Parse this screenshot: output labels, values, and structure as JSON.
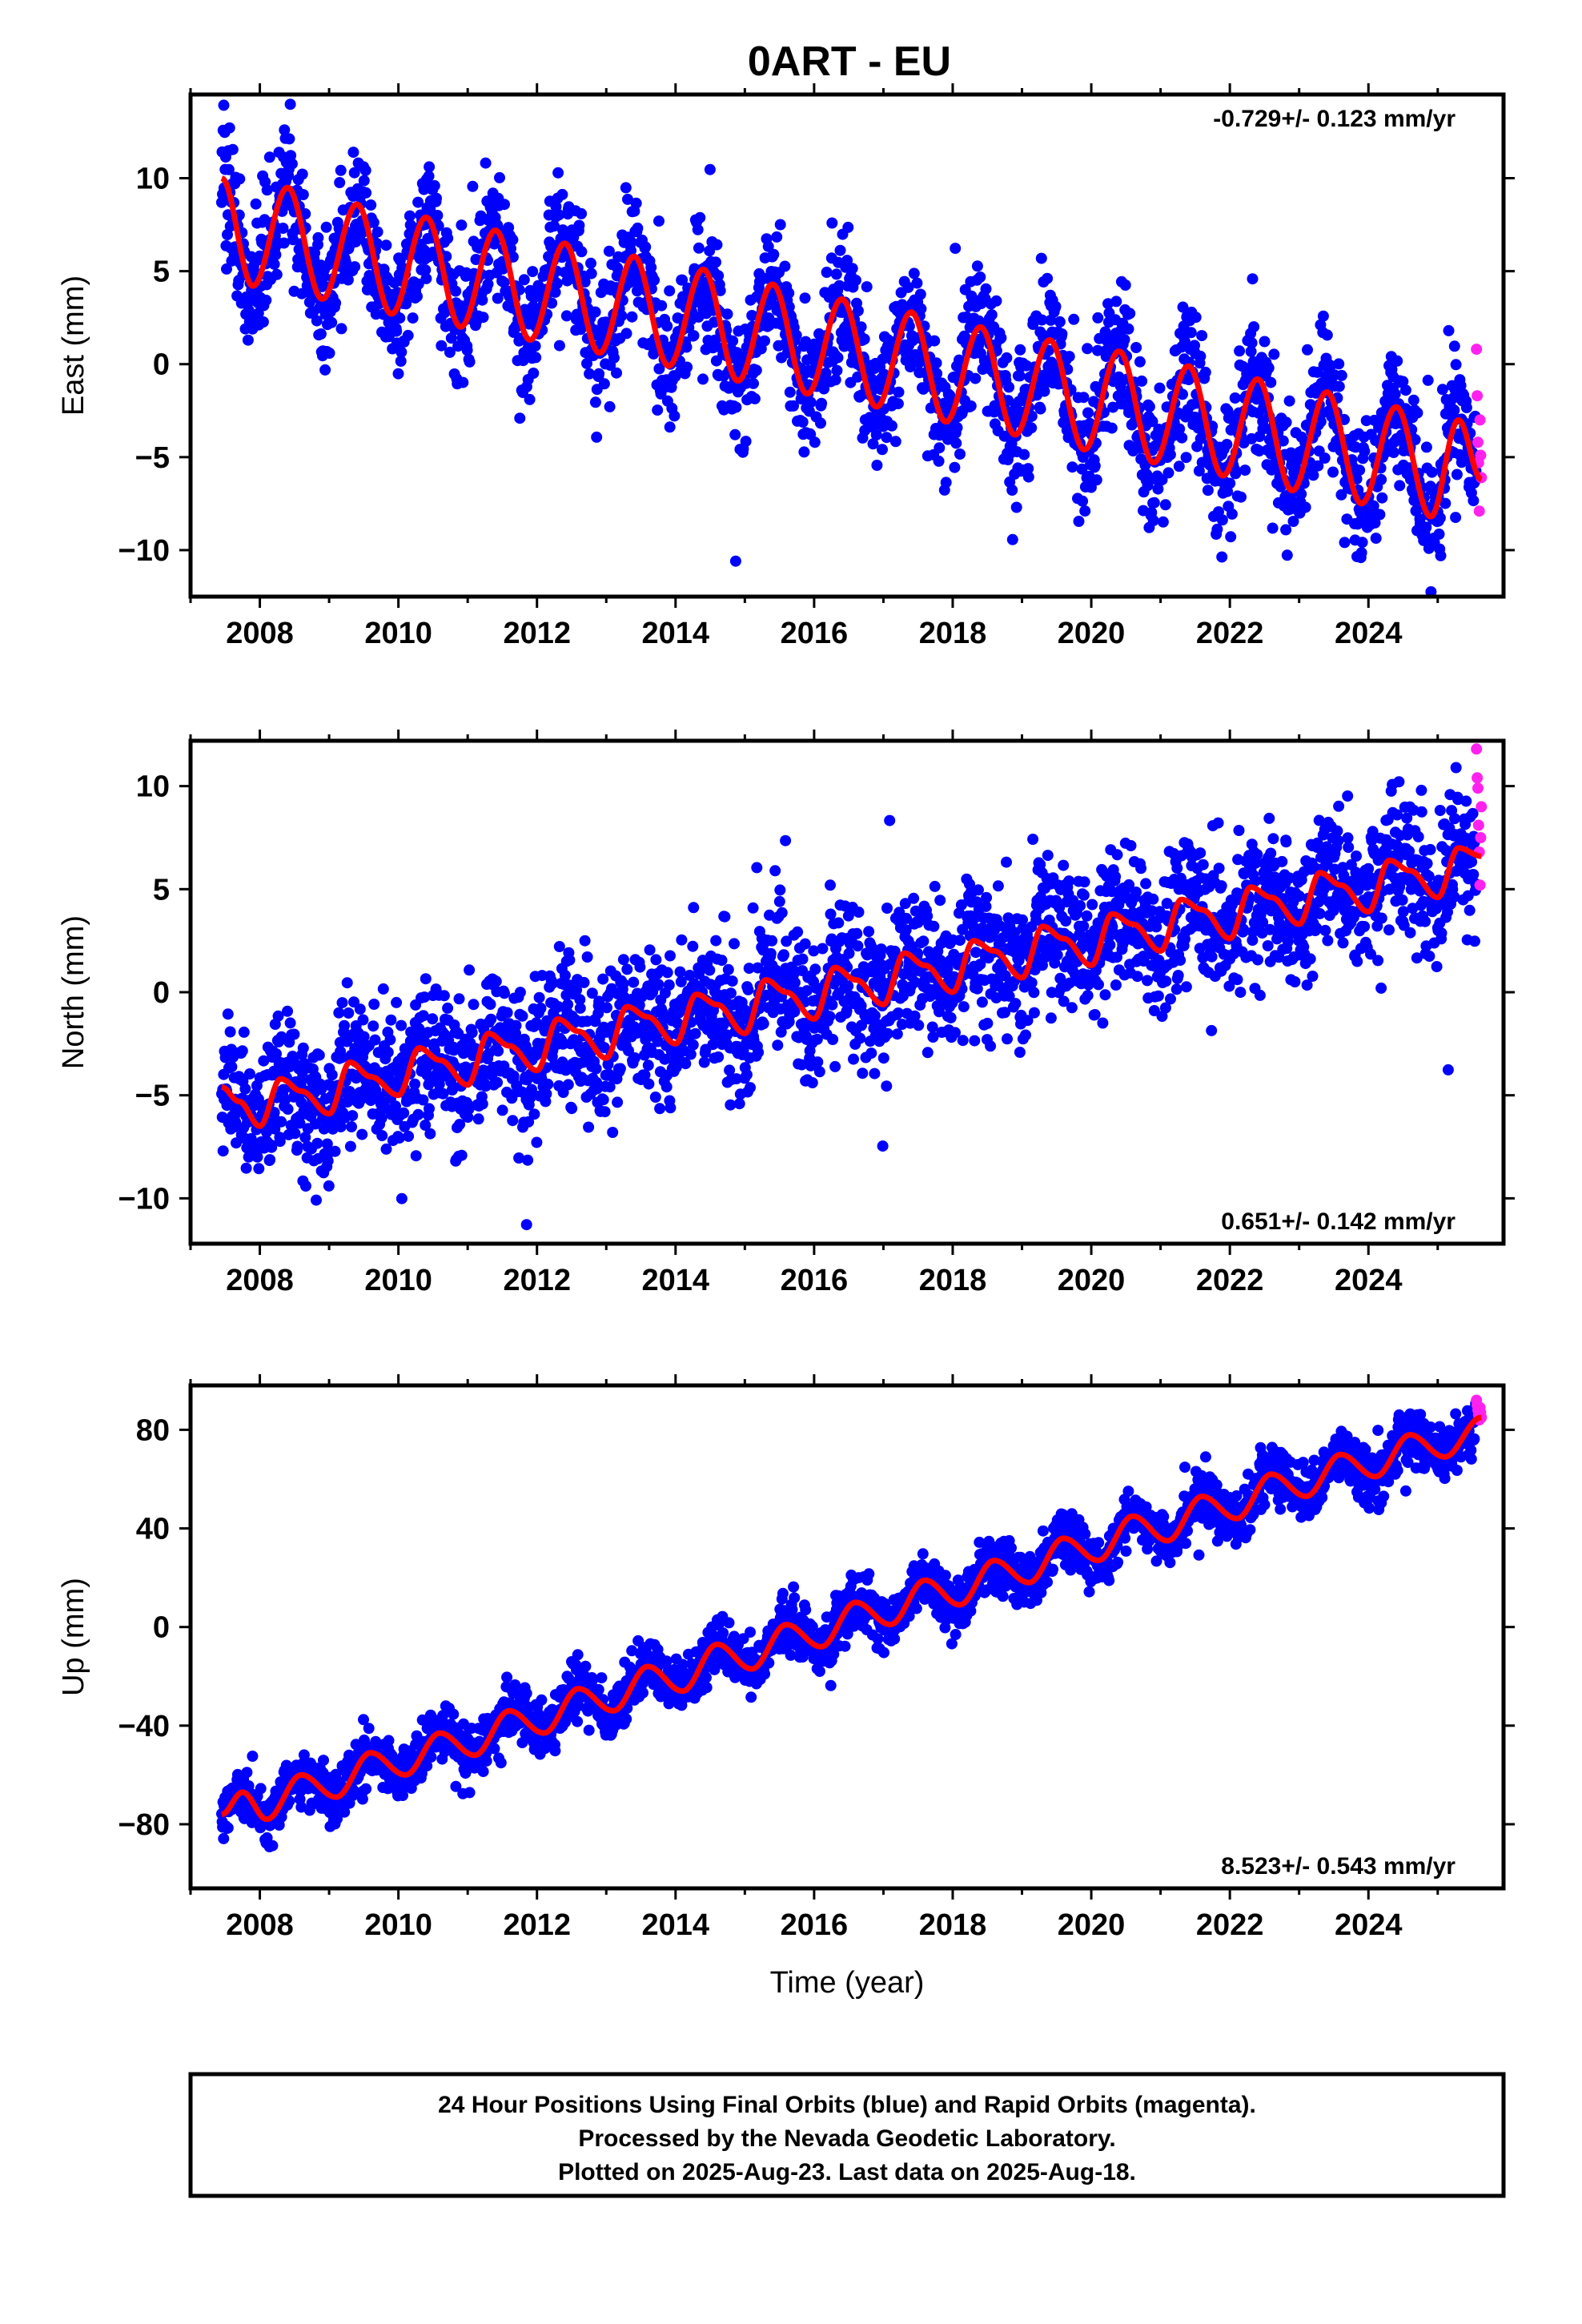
{
  "title": "0ART - EU",
  "colors": {
    "final": "#0000ff",
    "rapid": "#ff22ee",
    "model": "#ff0000",
    "frame": "#000000"
  },
  "xaxis": {
    "label": "Time (year)",
    "range": [
      2007.0,
      2025.95
    ],
    "ticks": [
      2008,
      2010,
      2012,
      2014,
      2016,
      2018,
      2020,
      2022,
      2024
    ],
    "tick_labels": [
      "2008",
      "2010",
      "2012",
      "2014",
      "2016",
      "2018",
      "2020",
      "2022",
      "2024"
    ]
  },
  "chart_data": [
    {
      "type": "scatter",
      "component": "East",
      "ylabel": "East (mm)",
      "ylim": [
        -12.5,
        14.5
      ],
      "yticks": [
        -10,
        -5,
        0,
        5,
        10
      ],
      "ytick_labels": [
        "−10",
        "−5",
        "0",
        "5",
        "10"
      ],
      "rate_text": "-0.729+/- 0.123 mm/yr",
      "rate_position": "top-right",
      "data_start": 2007.45,
      "last_final": 2025.55,
      "data_end": 2025.63,
      "series": [
        {
          "name": "Final Orbits (blue)",
          "kind": "points",
          "spread": 1.8
        },
        {
          "name": "Rapid Orbits (magenta)",
          "kind": "points",
          "x": [
            2025.56,
            2025.57,
            2025.58,
            2025.59,
            2025.6,
            2025.61,
            2025.62,
            2025.63
          ],
          "y": [
            0.8,
            -1.7,
            -4.2,
            -5.3,
            -7.9,
            -3.0,
            -4.9,
            -6.1
          ]
        },
        {
          "name": "Model fit",
          "kind": "line",
          "x": [
            2007.45,
            2007.9,
            2008.4,
            2008.9,
            2009.4,
            2009.9,
            2010.4,
            2010.9,
            2011.4,
            2011.9,
            2012.4,
            2012.9,
            2013.4,
            2013.9,
            2014.4,
            2014.9,
            2015.4,
            2015.9,
            2016.4,
            2016.9,
            2017.4,
            2017.9,
            2018.4,
            2018.9,
            2019.4,
            2019.9,
            2020.4,
            2020.9,
            2021.4,
            2021.9,
            2022.4,
            2022.9,
            2023.4,
            2023.9,
            2024.4,
            2024.9,
            2025.3,
            2025.63
          ],
          "y": [
            10.0,
            4.2,
            9.5,
            3.5,
            8.6,
            2.7,
            7.9,
            2.0,
            7.2,
            1.3,
            6.5,
            0.6,
            5.8,
            -0.1,
            5.1,
            -0.9,
            4.3,
            -1.6,
            3.5,
            -2.3,
            2.8,
            -3.1,
            2.0,
            -3.8,
            1.3,
            -4.6,
            0.7,
            -5.3,
            -0.1,
            -6.0,
            -0.8,
            -6.8,
            -1.5,
            -7.5,
            -2.3,
            -8.2,
            -3.0,
            -6.2
          ]
        }
      ]
    },
    {
      "type": "scatter",
      "component": "North",
      "ylabel": "North (mm)",
      "ylim": [
        -12.2,
        12.2
      ],
      "yticks": [
        -10,
        -5,
        0,
        5,
        10
      ],
      "ytick_labels": [
        "−10",
        "−5",
        "0",
        "5",
        "10"
      ],
      "rate_text": "0.651+/- 0.142 mm/yr",
      "rate_position": "bottom-right",
      "data_start": 2007.45,
      "last_final": 2025.55,
      "data_end": 2025.63,
      "series": [
        {
          "name": "Final Orbits (blue)",
          "kind": "points",
          "spread": 1.7
        },
        {
          "name": "Rapid Orbits (magenta)",
          "kind": "points",
          "x": [
            2025.56,
            2025.57,
            2025.58,
            2025.59,
            2025.6,
            2025.61,
            2025.62,
            2025.63
          ],
          "y": [
            11.8,
            10.4,
            9.9,
            8.1,
            6.8,
            5.2,
            7.5,
            9.0
          ]
        },
        {
          "name": "Model fit",
          "kind": "line",
          "x": [
            2007.45,
            2007.7,
            2008.0,
            2008.3,
            2008.6,
            2009.0,
            2009.3,
            2009.6,
            2010.0,
            2010.3,
            2010.6,
            2011.0,
            2011.3,
            2011.6,
            2012.0,
            2012.3,
            2012.6,
            2013.0,
            2013.3,
            2013.6,
            2014.0,
            2014.3,
            2014.6,
            2015.0,
            2015.3,
            2015.6,
            2016.0,
            2016.3,
            2016.6,
            2017.0,
            2017.3,
            2017.6,
            2018.0,
            2018.3,
            2018.6,
            2019.0,
            2019.3,
            2019.6,
            2020.0,
            2020.3,
            2020.6,
            2021.0,
            2021.3,
            2021.6,
            2022.0,
            2022.3,
            2022.6,
            2023.0,
            2023.3,
            2023.6,
            2024.0,
            2024.3,
            2024.6,
            2025.0,
            2025.3,
            2025.63
          ],
          "y": [
            -4.6,
            -5.3,
            -6.5,
            -4.2,
            -4.8,
            -5.9,
            -3.4,
            -4.1,
            -5.0,
            -2.7,
            -3.3,
            -4.5,
            -2.0,
            -2.6,
            -3.8,
            -1.3,
            -1.9,
            -3.2,
            -0.7,
            -1.2,
            -2.5,
            -0.1,
            -0.6,
            -2.0,
            0.6,
            0.0,
            -1.3,
            1.2,
            0.6,
            -0.6,
            1.9,
            1.3,
            0.0,
            2.5,
            2.0,
            0.7,
            3.2,
            2.6,
            1.3,
            3.8,
            3.3,
            2.0,
            4.5,
            4.0,
            2.6,
            5.1,
            4.6,
            3.3,
            5.8,
            5.2,
            3.9,
            6.4,
            5.9,
            4.6,
            7.0,
            6.6
          ]
        }
      ]
    },
    {
      "type": "scatter",
      "component": "Up",
      "ylabel": "Up (mm)",
      "ylim": [
        -106,
        98
      ],
      "yticks": [
        -80,
        -40,
        0,
        40,
        80
      ],
      "ytick_labels": [
        "−80",
        "−40",
        "0",
        "40",
        "80"
      ],
      "rate_text": "8.523+/- 0.543 mm/yr",
      "rate_position": "bottom-right",
      "data_start": 2007.45,
      "last_final": 2025.55,
      "data_end": 2025.63,
      "series": [
        {
          "name": "Final Orbits (blue)",
          "kind": "points",
          "spread": 5.5
        },
        {
          "name": "Rapid Orbits (magenta)",
          "kind": "points",
          "x": [
            2025.56,
            2025.57,
            2025.58,
            2025.59,
            2025.6,
            2025.61,
            2025.62,
            2025.63
          ],
          "y": [
            92,
            90,
            88,
            86,
            84,
            89,
            87,
            85
          ]
        },
        {
          "name": "Model fit",
          "kind": "line",
          "x": [
            2007.45,
            2007.75,
            2008.1,
            2008.6,
            2009.1,
            2009.6,
            2010.1,
            2010.6,
            2011.1,
            2011.6,
            2012.1,
            2012.6,
            2013.1,
            2013.6,
            2014.1,
            2014.6,
            2015.1,
            2015.6,
            2016.1,
            2016.6,
            2017.1,
            2017.6,
            2018.1,
            2018.6,
            2019.1,
            2019.6,
            2020.1,
            2020.6,
            2021.1,
            2021.6,
            2022.1,
            2022.6,
            2023.1,
            2023.6,
            2024.1,
            2024.6,
            2025.1,
            2025.63
          ],
          "y": [
            -76,
            -67,
            -78,
            -60,
            -69,
            -51,
            -60,
            -43,
            -52,
            -34,
            -43,
            -25,
            -34,
            -16,
            -26,
            -7,
            -17,
            1,
            -8,
            10,
            1,
            19,
            9,
            27,
            18,
            36,
            27,
            45,
            35,
            53,
            44,
            62,
            53,
            70,
            61,
            78,
            69,
            85
          ]
        }
      ]
    }
  ],
  "footer": {
    "line1": "24 Hour Positions Using Final Orbits (blue) and Rapid Orbits (magenta).",
    "line2": "Processed by the Nevada Geodetic Laboratory.",
    "line3": "Plotted on 2025-Aug-23. Last data on 2025-Aug-18."
  }
}
